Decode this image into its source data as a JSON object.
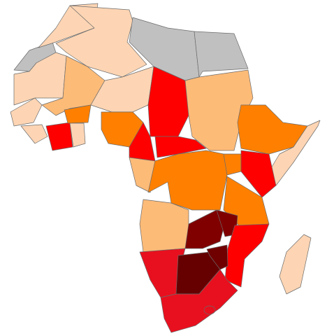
{
  "map": {
    "regions": [
      {
        "color": "#c0c0c0"
      },
      {
        "color": "#fdd5b4"
      },
      {
        "color": "#fdd5b4"
      },
      {
        "color": "#c0c0c0"
      },
      {
        "color": "#c0c0c0"
      },
      {
        "color": "#fdd5b4"
      },
      {
        "color": "#fdbb78"
      },
      {
        "color": "#fdd5b4"
      },
      {
        "color": "#ff0000"
      },
      {
        "color": "#fdbb78"
      },
      {
        "color": "#ff8000"
      },
      {
        "color": "#fdd5b4"
      },
      {
        "color": "#fdd5b4"
      },
      {
        "color": "#fdd5b4"
      },
      {
        "color": "#ff0000"
      },
      {
        "color": "#ff8000"
      },
      {
        "color": "#fdd5b4"
      },
      {
        "color": "#ff8000"
      },
      {
        "color": "#ff0000"
      },
      {
        "color": "#ff0000"
      },
      {
        "color": "#fdbb78"
      },
      {
        "color": "#ff8000"
      },
      {
        "color": "#ff8000"
      },
      {
        "color": "#ff0000"
      },
      {
        "color": "#ff8000"
      },
      {
        "color": "#fdbb78"
      },
      {
        "color": "#800000"
      },
      {
        "color": "#800000"
      },
      {
        "color": "#ff0000"
      },
      {
        "color": "#e8101e"
      },
      {
        "color": "#660000"
      },
      {
        "color": "#700000"
      },
      {
        "color": "#e8101e"
      },
      {
        "color": "#fdd5b4"
      }
    ]
  }
}
